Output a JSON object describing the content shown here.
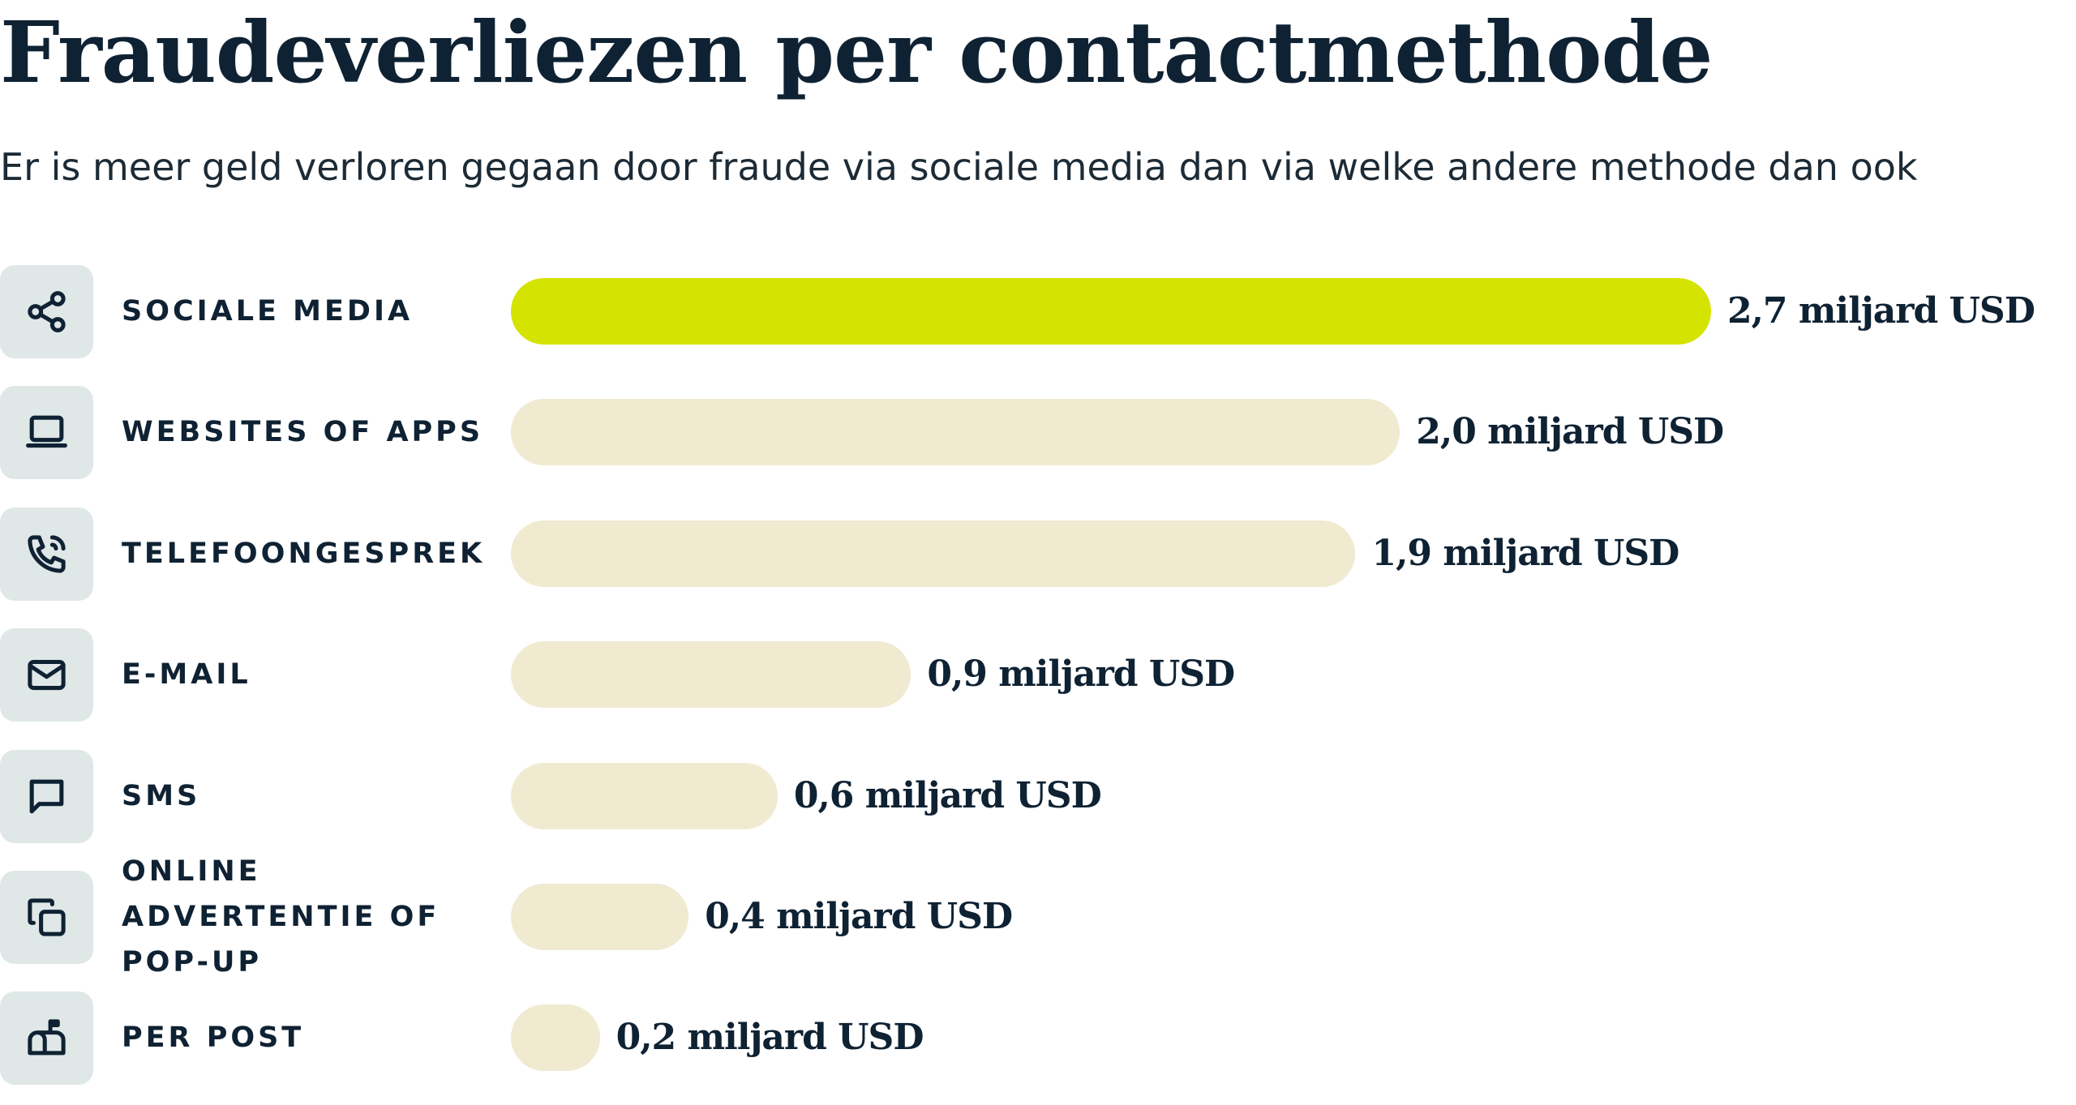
{
  "chart_data": {
    "type": "bar",
    "orientation": "horizontal",
    "title": "Fraudeverliezen per contactmethode",
    "subtitle": "Er is meer geld verloren gegaan door fraude via sociale media dan via welke andere methode dan ook",
    "categories": [
      "SOCIALE MEDIA",
      "WEBSITES OF APPS",
      "TELEFOONGESPREK",
      "E-MAIL",
      "SMS",
      "ONLINE ADVERTENTIE OF POP-UP",
      "PER POST"
    ],
    "values": [
      2.7,
      2.0,
      1.9,
      0.9,
      0.6,
      0.4,
      0.2
    ],
    "value_labels": [
      "2,7 miljard USD",
      "2,0 miljard USD",
      "1,9 miljard USD",
      "0,9 miljard USD",
      "0,6 miljard USD",
      "0,4 miljard USD",
      "0,2 miljard USD"
    ],
    "colors": [
      "#d4e300",
      "#f0ead0",
      "#f0ead0",
      "#f0ead0",
      "#f0ead0",
      "#f0ead0",
      "#f0ead0"
    ]
  }
}
